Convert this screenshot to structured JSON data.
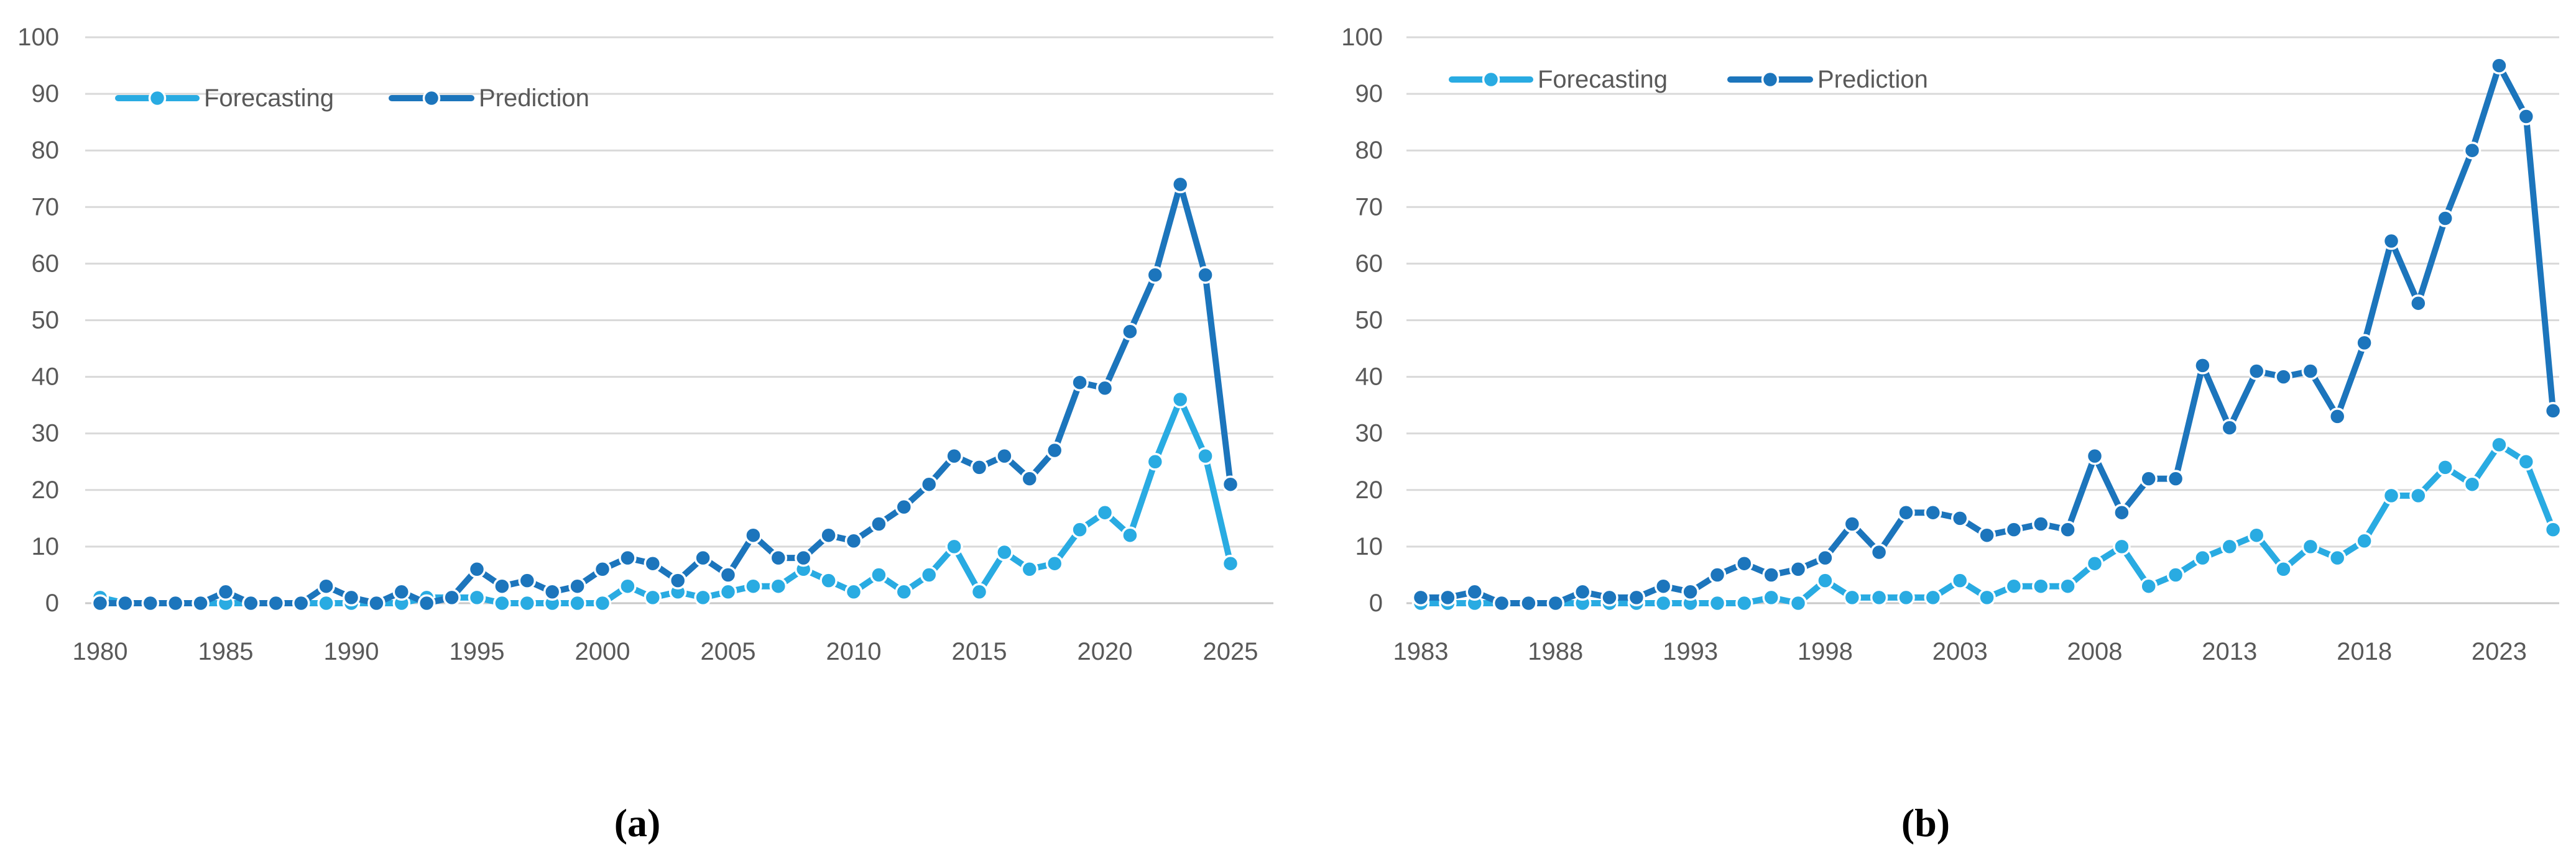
{
  "figure": {
    "background_color": "#ffffff",
    "text_color": "#595959",
    "gridline_color": "#D9D9D9",
    "axis_line_color": "#C9C9C9"
  },
  "charts": [
    {
      "caption": "(a)"
    },
    {
      "caption": "(b)"
    }
  ],
  "chart_data": [
    {
      "type": "line",
      "title": "",
      "xlabel": "",
      "ylabel": "",
      "ylim": [
        0,
        100
      ],
      "ytick_step": 10,
      "grid": true,
      "legend_position": "top-left-inside",
      "x": [
        1980,
        1981,
        1982,
        1983,
        1984,
        1985,
        1986,
        1987,
        1988,
        1989,
        1990,
        1991,
        1992,
        1993,
        1994,
        1995,
        1996,
        1997,
        1998,
        1999,
        2000,
        2001,
        2002,
        2003,
        2004,
        2005,
        2006,
        2007,
        2008,
        2009,
        2010,
        2011,
        2012,
        2013,
        2014,
        2015,
        2016,
        2017,
        2018,
        2019,
        2020,
        2021,
        2022,
        2023,
        2024,
        2025
      ],
      "x_tick_labels": [
        "1980",
        "1985",
        "1990",
        "1995",
        "2000",
        "2005",
        "2010",
        "2015",
        "2020",
        "2025"
      ],
      "y_tick_labels": [
        "0",
        "10",
        "20",
        "30",
        "40",
        "50",
        "60",
        "70",
        "80",
        "90",
        "100"
      ],
      "series": [
        {
          "name": "Forecasting",
          "color": "#29ABE2",
          "values": [
            1,
            0,
            0,
            0,
            0,
            0,
            0,
            0,
            0,
            0,
            0,
            0,
            0,
            1,
            1,
            1,
            0,
            0,
            0,
            0,
            0,
            3,
            1,
            2,
            1,
            2,
            3,
            3,
            6,
            4,
            2,
            5,
            2,
            5,
            10,
            2,
            9,
            6,
            7,
            13,
            16,
            12,
            25,
            36,
            26,
            7
          ]
        },
        {
          "name": "Prediction",
          "color": "#1C75BC",
          "values": [
            0,
            0,
            0,
            0,
            0,
            2,
            0,
            0,
            0,
            3,
            1,
            0,
            2,
            0,
            1,
            6,
            3,
            4,
            2,
            3,
            6,
            8,
            7,
            4,
            8,
            5,
            12,
            8,
            8,
            12,
            11,
            14,
            17,
            21,
            26,
            24,
            26,
            22,
            27,
            39,
            38,
            48,
            58,
            74,
            58,
            21
          ]
        }
      ]
    },
    {
      "type": "line",
      "title": "",
      "xlabel": "",
      "ylabel": "",
      "ylim": [
        0,
        100
      ],
      "ytick_step": 10,
      "grid": true,
      "legend_position": "top-left-inside",
      "x": [
        1983,
        1984,
        1985,
        1986,
        1987,
        1988,
        1989,
        1990,
        1991,
        1992,
        1993,
        1994,
        1995,
        1996,
        1997,
        1998,
        1999,
        2000,
        2001,
        2002,
        2003,
        2004,
        2005,
        2006,
        2007,
        2008,
        2009,
        2010,
        2011,
        2012,
        2013,
        2014,
        2015,
        2016,
        2017,
        2018,
        2019,
        2020,
        2021,
        2022,
        2023,
        2024,
        2025
      ],
      "x_tick_labels": [
        "1983",
        "1988",
        "1993",
        "1998",
        "2003",
        "2008",
        "2013",
        "2018",
        "2023"
      ],
      "y_tick_labels": [
        "0",
        "10",
        "20",
        "30",
        "40",
        "50",
        "60",
        "70",
        "80",
        "90",
        "100"
      ],
      "series": [
        {
          "name": "Forecasting",
          "color": "#29ABE2",
          "values": [
            0,
            0,
            0,
            0,
            0,
            0,
            0,
            0,
            0,
            0,
            0,
            0,
            0,
            1,
            0,
            4,
            1,
            1,
            1,
            1,
            4,
            1,
            3,
            3,
            3,
            7,
            10,
            3,
            5,
            8,
            10,
            12,
            6,
            10,
            8,
            11,
            19,
            19,
            24,
            21,
            28,
            25,
            13
          ]
        },
        {
          "name": "Prediction",
          "color": "#1C75BC",
          "values": [
            1,
            1,
            2,
            0,
            0,
            0,
            2,
            1,
            1,
            3,
            2,
            5,
            7,
            5,
            6,
            8,
            14,
            9,
            16,
            16,
            15,
            12,
            13,
            14,
            13,
            26,
            16,
            22,
            22,
            42,
            31,
            41,
            40,
            41,
            33,
            46,
            64,
            53,
            68,
            80,
            95,
            86,
            34
          ]
        }
      ]
    }
  ]
}
